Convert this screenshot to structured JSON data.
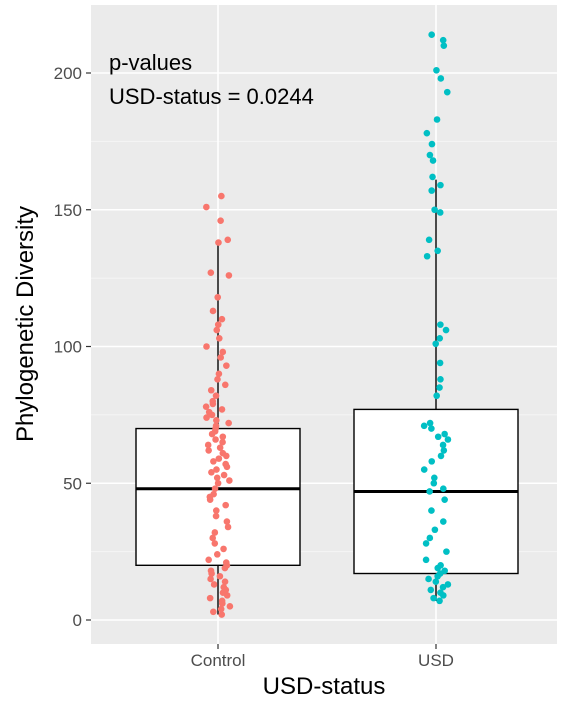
{
  "chart_data": {
    "type": "box",
    "title": "",
    "xlabel": "USD-status",
    "ylabel": "Phylogenetic Diversity",
    "ylim": [
      -8,
      225
    ],
    "yticks": [
      0,
      50,
      100,
      150,
      200
    ],
    "grid": true,
    "legend": "none",
    "annotation": {
      "line1": "p-values",
      "line2": "USD-status = 0.0244"
    },
    "groups": [
      {
        "category": "Control",
        "color": "#F8766D",
        "box": {
          "whisker_low": 2,
          "q1": 20,
          "median": 48,
          "q3": 70,
          "whisker_high": 139
        },
        "points": [
          2,
          3,
          4,
          5,
          6,
          7,
          8,
          9,
          10,
          11,
          12,
          13,
          14,
          15,
          16,
          17,
          18,
          19,
          20,
          21,
          22,
          24,
          26,
          28,
          30,
          32,
          34,
          36,
          38,
          40,
          42,
          44,
          45,
          46,
          48,
          50,
          51,
          52,
          53,
          54,
          55,
          56,
          57,
          58,
          59,
          60,
          61,
          62,
          63,
          64,
          65,
          66,
          67,
          68,
          69,
          70,
          71,
          72,
          73,
          74,
          75,
          76,
          77,
          78,
          79,
          80,
          82,
          84,
          86,
          88,
          90,
          93,
          96,
          98,
          100,
          103,
          106,
          108,
          110,
          113,
          118,
          126,
          127,
          138,
          139,
          146,
          151,
          155
        ]
      },
      {
        "category": "USD",
        "color": "#00BFC4",
        "box": {
          "whisker_low": 7,
          "q1": 17,
          "median": 47,
          "q3": 77,
          "whisker_high": 161
        },
        "points": [
          7,
          8,
          9,
          10,
          11,
          12,
          13,
          14,
          15,
          16,
          17,
          18,
          19,
          20,
          22,
          25,
          28,
          30,
          33,
          36,
          40,
          44,
          47,
          48,
          50,
          52,
          55,
          58,
          60,
          62,
          64,
          66,
          67,
          68,
          70,
          71,
          72,
          82,
          85,
          88,
          94,
          101,
          103,
          106,
          108,
          133,
          135,
          139,
          149,
          150,
          157,
          159,
          162,
          168,
          170,
          174,
          178,
          183,
          193,
          198,
          201,
          210,
          212,
          214
        ]
      }
    ]
  }
}
